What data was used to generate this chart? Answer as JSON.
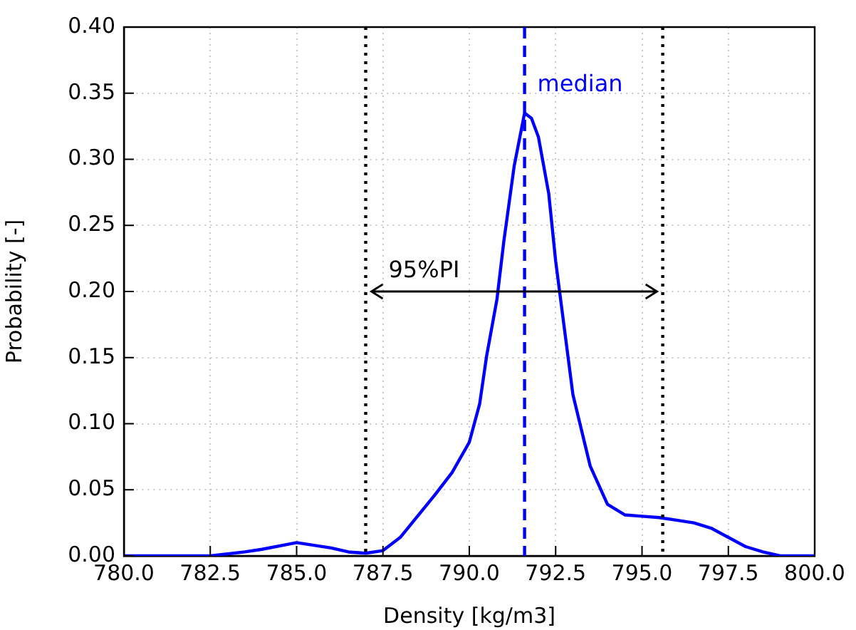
{
  "chart_data": {
    "type": "line",
    "xlabel": "Density [kg/m3]",
    "ylabel": "Probability [-]",
    "x": [
      780,
      782.5,
      783.5,
      784,
      785,
      786,
      786.5,
      787,
      787.5,
      788,
      788.5,
      789,
      789.5,
      790,
      790.3,
      790.5,
      790.8,
      791,
      791.3,
      791.6,
      791.8,
      792,
      792.3,
      792.5,
      793,
      793.5,
      794,
      794.5,
      795,
      795.5,
      796,
      796.5,
      797,
      797.5,
      798,
      798.5,
      799,
      800
    ],
    "series": [
      {
        "color": "#0000ff",
        "values": [
          0,
          0,
          0.003,
          0.005,
          0.01,
          0.006,
          0.003,
          0.002,
          0.004,
          0.014,
          0.03,
          0.046,
          0.063,
          0.086,
          0.115,
          0.151,
          0.194,
          0.238,
          0.295,
          0.335,
          0.331,
          0.317,
          0.274,
          0.223,
          0.122,
          0.068,
          0.039,
          0.031,
          0.03,
          0.029,
          0.027,
          0.025,
          0.021,
          0.014,
          0.007,
          0.003,
          0,
          0
        ]
      }
    ],
    "xlim": [
      780,
      800
    ],
    "xticks": [
      {
        "value": 780,
        "label": "780.0"
      },
      {
        "value": 782.5,
        "label": "782.5"
      },
      {
        "value": 785,
        "label": "785.0"
      },
      {
        "value": 787.5,
        "label": "787.5"
      },
      {
        "value": 790,
        "label": "790.0"
      },
      {
        "value": 792.5,
        "label": "792.5"
      },
      {
        "value": 795,
        "label": "795.0"
      },
      {
        "value": 797.5,
        "label": "797.5"
      },
      {
        "value": 800,
        "label": "800.0"
      }
    ],
    "ylim": [
      0,
      0.4
    ],
    "yticks": [
      {
        "value": 0,
        "label": "0.00"
      },
      {
        "value": 0.05,
        "label": "0.05"
      },
      {
        "value": 0.1,
        "label": "0.10"
      },
      {
        "value": 0.15,
        "label": "0.15"
      },
      {
        "value": 0.2,
        "label": "0.20"
      },
      {
        "value": 0.25,
        "label": "0.25"
      },
      {
        "value": 0.3,
        "label": "0.30"
      },
      {
        "value": 0.35,
        "label": "0.35"
      },
      {
        "value": 0.4,
        "label": "0.40"
      }
    ],
    "ref_lines": [
      {
        "axis": "x",
        "value": 787.0,
        "color": "#000000",
        "line_style": "dotted"
      },
      {
        "axis": "x",
        "value": 791.6,
        "label": "median",
        "color": "#0000ff",
        "line_style": "dashed"
      },
      {
        "axis": "x",
        "value": 795.6,
        "color": "#000000",
        "line_style": "dotted"
      }
    ],
    "annotations": [
      "95%PI"
    ],
    "grid": true,
    "legend": false,
    "marker": "none",
    "line_style": "solid"
  }
}
